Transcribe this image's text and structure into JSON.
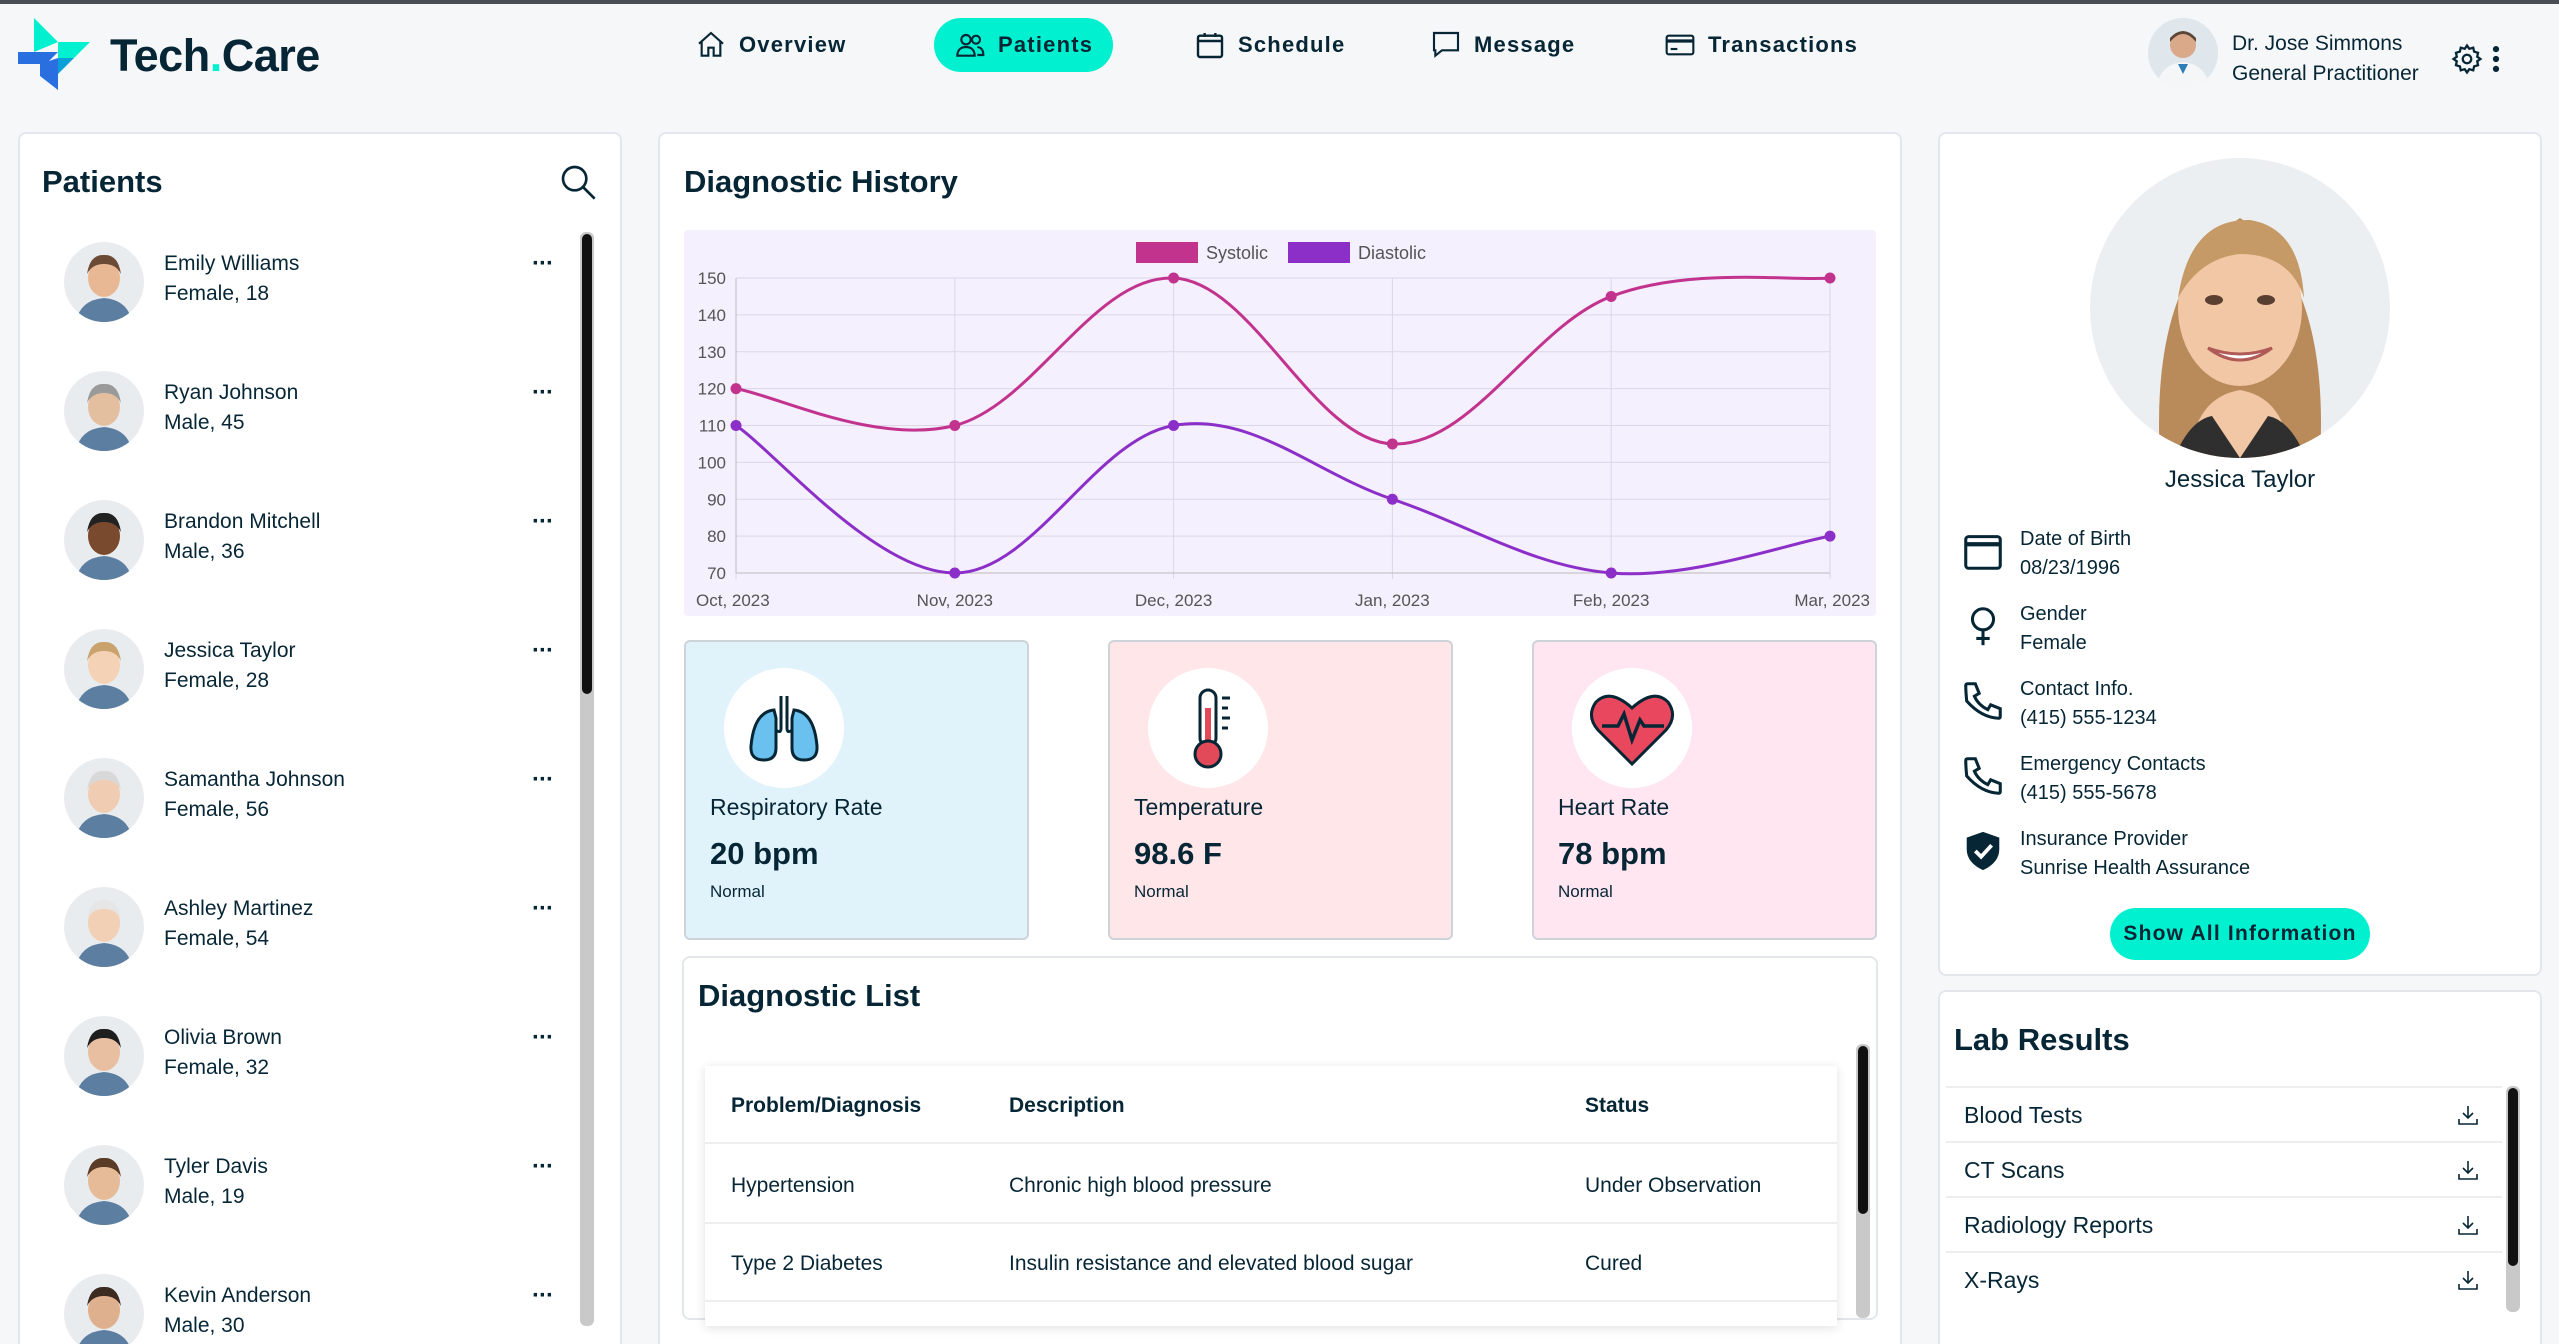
{
  "brand": {
    "name_part1": "Tech",
    "name_dot": ".",
    "name_part2": "Care",
    "accent_color": "#01f0d0"
  },
  "nav": [
    {
      "label": "Overview",
      "icon": "home-icon",
      "active": false
    },
    {
      "label": "Patients",
      "icon": "users-icon",
      "active": true
    },
    {
      "label": "Schedule",
      "icon": "calendar-icon",
      "active": false
    },
    {
      "label": "Message",
      "icon": "message-icon",
      "active": false
    },
    {
      "label": "Transactions",
      "icon": "credit-card-icon",
      "active": false
    }
  ],
  "doctor": {
    "name": "Dr. Jose Simmons",
    "role": "General Practitioner"
  },
  "patients_panel": {
    "title": "Patients",
    "items": [
      {
        "name": "Emily Williams",
        "meta": "Female, 18",
        "more": "···"
      },
      {
        "name": "Ryan Johnson",
        "meta": "Male, 45",
        "more": "···"
      },
      {
        "name": "Brandon Mitchell",
        "meta": "Male, 36",
        "more": "···"
      },
      {
        "name": "Jessica Taylor",
        "meta": "Female, 28",
        "more": "···"
      },
      {
        "name": "Samantha Johnson",
        "meta": "Female, 56",
        "more": "···"
      },
      {
        "name": "Ashley Martinez",
        "meta": "Female, 54",
        "more": "···"
      },
      {
        "name": "Olivia Brown",
        "meta": "Female, 32",
        "more": "···"
      },
      {
        "name": "Tyler Davis",
        "meta": "Male, 19",
        "more": "···"
      },
      {
        "name": "Kevin Anderson",
        "meta": "Male, 30",
        "more": "···"
      }
    ]
  },
  "diagnostic_history": {
    "title": "Diagnostic History"
  },
  "chart_data": {
    "type": "line",
    "categories": [
      "Oct, 2023",
      "Nov, 2023",
      "Dec, 2023",
      "Jan, 2023",
      "Feb, 2023",
      "Mar, 2023"
    ],
    "series": [
      {
        "name": "Systolic",
        "values": [
          120,
          110,
          150,
          105,
          145,
          150
        ],
        "color": "#c2338e"
      },
      {
        "name": "Diastolic",
        "values": [
          110,
          70,
          110,
          90,
          70,
          80
        ],
        "color": "#8c2fc8"
      }
    ],
    "yticks": [
      70,
      80,
      90,
      100,
      110,
      120,
      130,
      140,
      150
    ],
    "ylim": [
      70,
      150
    ],
    "grid": true,
    "legend": "top",
    "background": "#f4f0fe"
  },
  "vitals": [
    {
      "label": "Respiratory Rate",
      "value": "20 bpm",
      "status": "Normal",
      "icon": "lungs-icon",
      "bg": "#e0f3fa"
    },
    {
      "label": "Temperature",
      "value": "98.6 F",
      "status": "Normal",
      "icon": "thermometer-icon",
      "bg": "#ffe6e9"
    },
    {
      "label": "Heart Rate",
      "value": "78 bpm",
      "status": "Normal",
      "icon": "heart-rate-icon",
      "bg": "#ffe6f1"
    }
  ],
  "diagnostic_list": {
    "title": "Diagnostic List",
    "headers": [
      "Problem/Diagnosis",
      "Description",
      "Status"
    ],
    "rows": [
      [
        "Hypertension",
        "Chronic high blood pressure",
        "Under Observation"
      ],
      [
        "Type 2 Diabetes",
        "Insulin resistance and elevated blood sugar",
        "Cured"
      ]
    ]
  },
  "profile": {
    "name": "Jessica Taylor",
    "info": [
      {
        "label": "Date of Birth",
        "value": "08/23/1996",
        "icon": "calendar-icon"
      },
      {
        "label": "Gender",
        "value": "Female",
        "icon": "female-icon"
      },
      {
        "label": "Contact Info.",
        "value": "(415) 555-1234",
        "icon": "phone-icon"
      },
      {
        "label": "Emergency Contacts",
        "value": "(415) 555-5678",
        "icon": "phone-icon"
      },
      {
        "label": "Insurance Provider",
        "value": "Sunrise Health Assurance",
        "icon": "shield-check-icon"
      }
    ],
    "button": "Show All Information"
  },
  "lab_results": {
    "title": "Lab Results",
    "items": [
      "Blood Tests",
      "CT Scans",
      "Radiology Reports",
      "X-Rays"
    ]
  }
}
